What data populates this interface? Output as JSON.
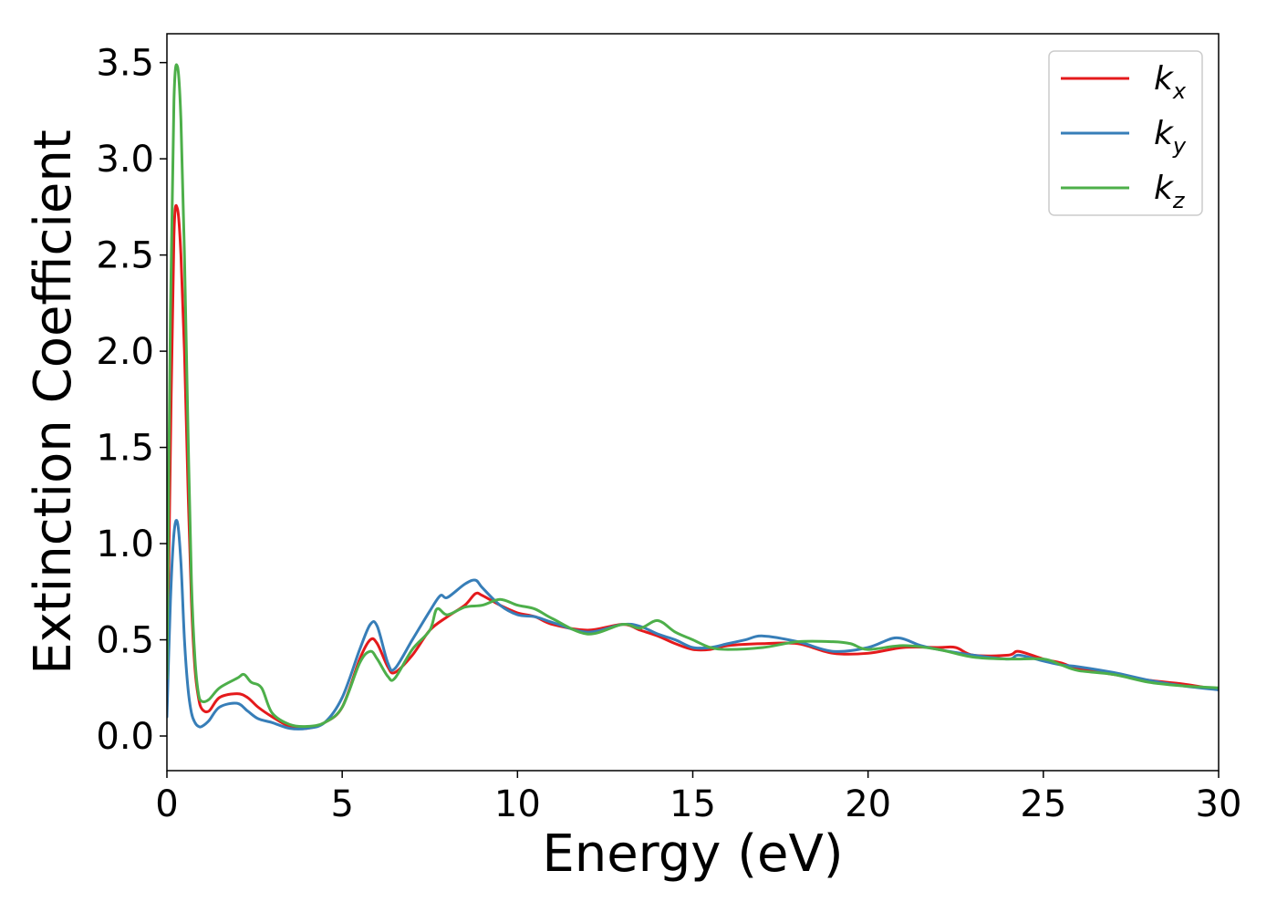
{
  "chart_data": {
    "type": "line",
    "title": "",
    "xlabel": "Energy (eV)",
    "ylabel": "Extinction Coefficient",
    "xlim": [
      0,
      30
    ],
    "ylim": [
      -0.18,
      3.65
    ],
    "xticks": [
      0,
      5,
      10,
      15,
      20,
      25,
      30
    ],
    "xtick_labels": [
      "0",
      "5",
      "10",
      "15",
      "20",
      "25",
      "30"
    ],
    "yticks": [
      0.0,
      0.5,
      1.0,
      1.5,
      2.0,
      2.5,
      3.0,
      3.5
    ],
    "ytick_labels": [
      "0.0",
      "0.5",
      "1.0",
      "1.5",
      "2.0",
      "2.5",
      "3.0",
      "3.5"
    ],
    "grid": false,
    "legend_position": "top-right",
    "series": [
      {
        "name": "k",
        "subscript": "x",
        "color": "#e41a1c",
        "x": [
          0,
          0.1,
          0.2,
          0.3,
          0.4,
          0.5,
          0.6,
          0.7,
          0.8,
          0.9,
          1.0,
          1.2,
          1.5,
          2.0,
          2.3,
          2.6,
          3.0,
          3.5,
          4.0,
          4.5,
          5.0,
          5.5,
          5.8,
          6.0,
          6.3,
          6.5,
          7.0,
          7.5,
          8.0,
          8.5,
          8.8,
          9.0,
          9.5,
          10.0,
          10.5,
          11.0,
          12.0,
          13.0,
          13.5,
          14.0,
          14.5,
          15.0,
          15.5,
          16.0,
          17.0,
          18.0,
          19.0,
          20.0,
          21.0,
          22.0,
          22.5,
          23.0,
          24.0,
          24.3,
          25.0,
          25.5,
          26.0,
          27.0,
          28.0,
          29.0,
          30.0
        ],
        "y": [
          0.15,
          1.5,
          2.6,
          2.74,
          2.5,
          2.0,
          1.3,
          0.7,
          0.35,
          0.2,
          0.14,
          0.13,
          0.2,
          0.22,
          0.2,
          0.15,
          0.1,
          0.05,
          0.04,
          0.07,
          0.15,
          0.4,
          0.5,
          0.48,
          0.36,
          0.33,
          0.42,
          0.55,
          0.62,
          0.68,
          0.74,
          0.73,
          0.68,
          0.64,
          0.62,
          0.58,
          0.55,
          0.58,
          0.55,
          0.52,
          0.48,
          0.45,
          0.45,
          0.47,
          0.48,
          0.48,
          0.43,
          0.43,
          0.46,
          0.46,
          0.46,
          0.42,
          0.42,
          0.44,
          0.4,
          0.38,
          0.35,
          0.32,
          0.29,
          0.27,
          0.24
        ]
      },
      {
        "name": "k",
        "subscript": "y",
        "color": "#377eb8",
        "x": [
          0,
          0.1,
          0.2,
          0.3,
          0.4,
          0.5,
          0.6,
          0.7,
          0.8,
          0.9,
          1.0,
          1.2,
          1.5,
          2.0,
          2.3,
          2.6,
          3.0,
          3.5,
          4.0,
          4.5,
          5.0,
          5.5,
          5.8,
          6.0,
          6.3,
          6.5,
          7.0,
          7.5,
          7.8,
          8.0,
          8.5,
          8.8,
          9.0,
          9.5,
          10.0,
          10.5,
          11.0,
          12.0,
          13.0,
          13.5,
          14.0,
          14.5,
          15.0,
          15.5,
          16.0,
          16.5,
          17.0,
          18.0,
          19.0,
          20.0,
          20.8,
          21.5,
          22.0,
          23.0,
          24.0,
          24.3,
          25.0,
          25.5,
          26.0,
          27.0,
          28.0,
          29.0,
          30.0
        ],
        "y": [
          0.1,
          0.7,
          1.05,
          1.11,
          0.9,
          0.5,
          0.25,
          0.12,
          0.07,
          0.05,
          0.05,
          0.08,
          0.15,
          0.17,
          0.13,
          0.09,
          0.07,
          0.04,
          0.04,
          0.07,
          0.2,
          0.45,
          0.58,
          0.57,
          0.38,
          0.35,
          0.5,
          0.65,
          0.73,
          0.72,
          0.79,
          0.81,
          0.77,
          0.68,
          0.63,
          0.62,
          0.59,
          0.54,
          0.58,
          0.57,
          0.53,
          0.5,
          0.46,
          0.46,
          0.48,
          0.5,
          0.52,
          0.49,
          0.44,
          0.46,
          0.51,
          0.47,
          0.45,
          0.42,
          0.4,
          0.42,
          0.39,
          0.37,
          0.36,
          0.33,
          0.29,
          0.26,
          0.24
        ]
      },
      {
        "name": "k",
        "subscript": "z",
        "color": "#4daf4a",
        "x": [
          0,
          0.1,
          0.2,
          0.3,
          0.4,
          0.5,
          0.6,
          0.7,
          0.8,
          0.9,
          1.0,
          1.2,
          1.5,
          2.0,
          2.2,
          2.4,
          2.7,
          3.0,
          3.5,
          4.0,
          4.5,
          5.0,
          5.5,
          5.8,
          6.0,
          6.3,
          6.5,
          7.0,
          7.5,
          7.7,
          8.0,
          8.5,
          9.0,
          9.5,
          10.0,
          10.5,
          11.0,
          12.0,
          13.0,
          13.5,
          14.0,
          14.5,
          15.0,
          15.5,
          16.0,
          17.0,
          18.0,
          19.0,
          19.5,
          20.0,
          21.0,
          22.0,
          23.0,
          24.0,
          25.0,
          25.5,
          26.0,
          27.0,
          28.0,
          29.0,
          30.0
        ],
        "y": [
          0.3,
          2.2,
          3.3,
          3.48,
          3.2,
          2.5,
          1.6,
          0.8,
          0.4,
          0.22,
          0.18,
          0.19,
          0.25,
          0.3,
          0.32,
          0.28,
          0.25,
          0.12,
          0.06,
          0.05,
          0.07,
          0.15,
          0.38,
          0.44,
          0.4,
          0.31,
          0.3,
          0.45,
          0.55,
          0.66,
          0.63,
          0.67,
          0.68,
          0.71,
          0.68,
          0.66,
          0.61,
          0.53,
          0.58,
          0.56,
          0.6,
          0.54,
          0.5,
          0.46,
          0.45,
          0.46,
          0.49,
          0.49,
          0.48,
          0.45,
          0.47,
          0.45,
          0.41,
          0.4,
          0.4,
          0.37,
          0.34,
          0.32,
          0.28,
          0.26,
          0.25
        ]
      }
    ]
  }
}
